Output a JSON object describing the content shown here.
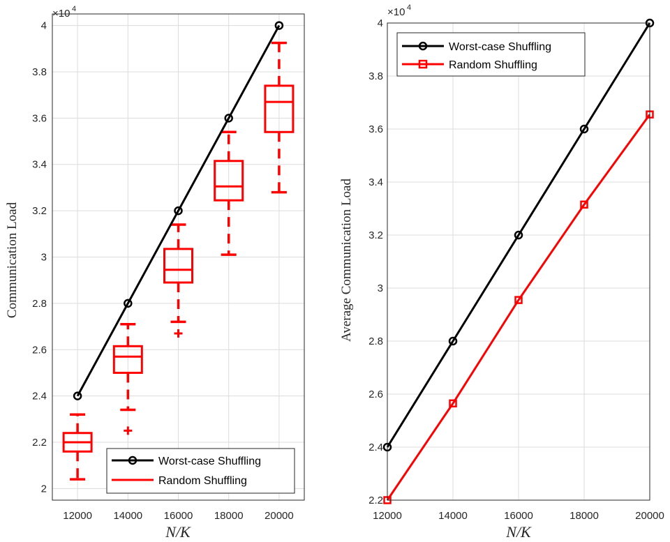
{
  "chart_data": [
    {
      "type": "box",
      "title": "",
      "xlabel": "N/K",
      "ylabel": "Communication Load",
      "x_categories": [
        12000,
        14000,
        16000,
        18000,
        20000
      ],
      "x_tick_labels": [
        "12000",
        "14000",
        "16000",
        "18000",
        "20000"
      ],
      "ylim": [
        19500,
        40500
      ],
      "y_ticks": [
        20000,
        22000,
        24000,
        26000,
        28000,
        30000,
        32000,
        34000,
        36000,
        38000,
        40000
      ],
      "y_tick_labels": [
        "2",
        "2.2",
        "2.4",
        "2.6",
        "2.8",
        "3",
        "3.2",
        "3.4",
        "3.6",
        "3.8",
        "4"
      ],
      "y_multiplier_label": "×10^4",
      "grid": true,
      "legend_position": "bottom-right",
      "series": [
        {
          "name": "Worst-case Shuffling",
          "kind": "line",
          "color": "#000000",
          "marker": "circle",
          "x": [
            12000,
            14000,
            16000,
            18000,
            20000
          ],
          "y": [
            24000,
            28000,
            32000,
            36000,
            40000
          ]
        },
        {
          "name": "Random Shuffling",
          "kind": "boxplot",
          "color": "#ff0000",
          "boxes": [
            {
              "x": 12000,
              "whisker_low": 20400,
              "q1": 21600,
              "median": 22000,
              "q3": 22400,
              "whisker_high": 23200,
              "outliers": []
            },
            {
              "x": 14000,
              "whisker_low": 23400,
              "q1": 25000,
              "median": 25700,
              "q3": 26150,
              "whisker_high": 27100,
              "outliers": [
                22500
              ]
            },
            {
              "x": 16000,
              "whisker_low": 27200,
              "q1": 28900,
              "median": 29450,
              "q3": 30350,
              "whisker_high": 31400,
              "outliers": [
                26700
              ]
            },
            {
              "x": 18000,
              "whisker_low": 30100,
              "q1": 32450,
              "median": 33050,
              "q3": 34150,
              "whisker_high": 35400,
              "outliers": []
            },
            {
              "x": 20000,
              "whisker_low": 32800,
              "q1": 35400,
              "median": 36700,
              "q3": 37400,
              "whisker_high": 39250,
              "outliers": []
            }
          ]
        }
      ]
    },
    {
      "type": "line",
      "title": "",
      "xlabel": "N/K",
      "ylabel": "Average Communication Load",
      "x": [
        12000,
        14000,
        16000,
        18000,
        20000
      ],
      "x_tick_labels": [
        "12000",
        "14000",
        "16000",
        "18000",
        "20000"
      ],
      "xlim": [
        12000,
        20000
      ],
      "ylim": [
        22000,
        40000
      ],
      "y_ticks": [
        22000,
        24000,
        26000,
        28000,
        30000,
        32000,
        34000,
        36000,
        38000,
        40000
      ],
      "y_tick_labels": [
        "2.2",
        "2.4",
        "2.6",
        "2.8",
        "3",
        "3.2",
        "3.4",
        "3.6",
        "3.8",
        "4"
      ],
      "y_multiplier_label": "×10^4",
      "grid": true,
      "legend_position": "top-left",
      "series": [
        {
          "name": "Worst-case Shuffling",
          "color": "#000000",
          "marker": "circle",
          "values": [
            24000,
            28000,
            32000,
            36000,
            40000
          ]
        },
        {
          "name": "Random Shuffling",
          "color": "#ff0000",
          "marker": "square",
          "values": [
            22000,
            25650,
            29550,
            33150,
            36550
          ]
        }
      ]
    }
  ]
}
